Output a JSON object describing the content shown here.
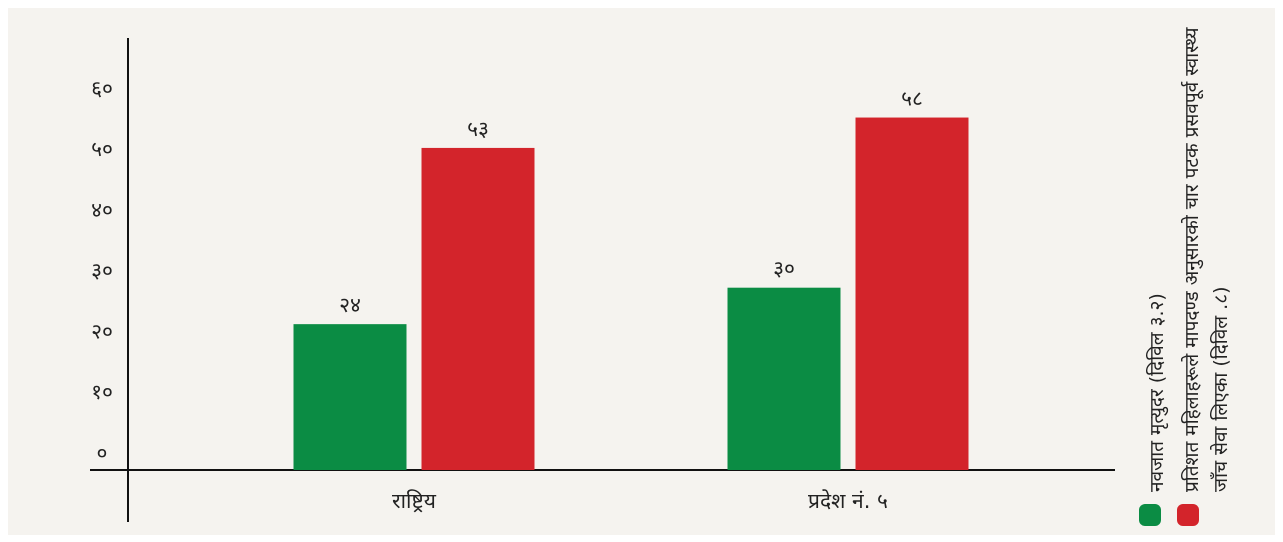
{
  "chart_data": {
    "type": "bar",
    "categories": [
      "राष्ट्रिय",
      "प्रदेश नं. ५"
    ],
    "series": [
      {
        "name": "नवजात मृत्युदर (दिविल ३.२)",
        "color": "#0b8c44",
        "values": [
          24,
          30
        ],
        "value_labels": [
          "२४",
          "३०"
        ]
      },
      {
        "name": "प्रतिशत महिलाहरूले मापदण्ड अनुसारको चार पटक प्रसवपूर्व स्वास्थ्य जाँच सेवा लिएका (दिविल .८)",
        "color": "#d3242b",
        "values": [
          53,
          58
        ],
        "value_labels": [
          "५३",
          "५८"
        ]
      }
    ],
    "ylim": [
      0,
      65
    ],
    "yticks": [
      {
        "value": 0,
        "label": "०"
      },
      {
        "value": 10,
        "label": "१०"
      },
      {
        "value": 20,
        "label": "२०"
      },
      {
        "value": 30,
        "label": "३०"
      },
      {
        "value": 40,
        "label": "४०"
      },
      {
        "value": 50,
        "label": "५०"
      },
      {
        "value": 60,
        "label": "६०"
      }
    ]
  }
}
